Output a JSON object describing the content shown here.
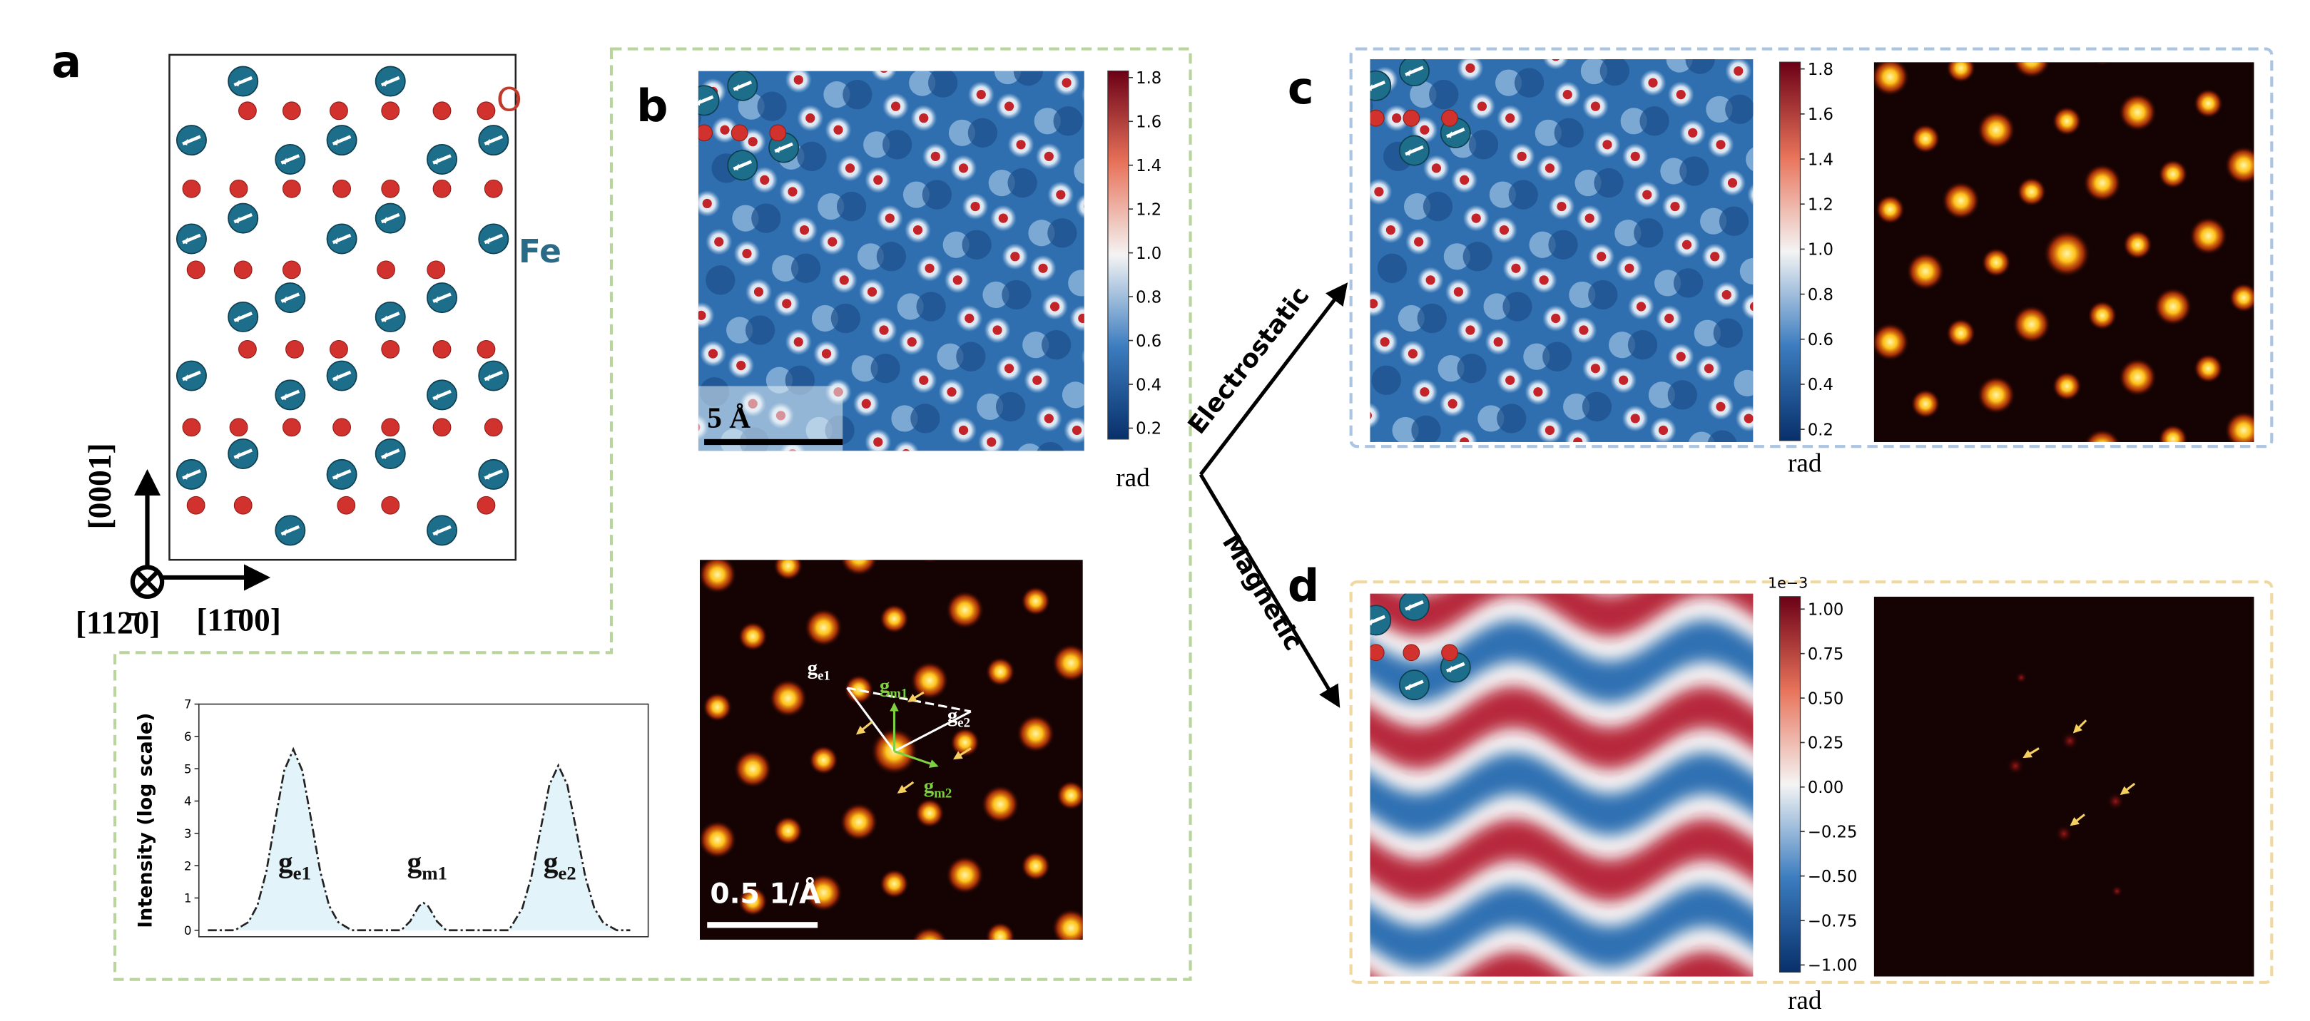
{
  "panel_a": {
    "label": "a",
    "oxygen_label": "O",
    "iron_label": "Fe",
    "axis_vertical": "[0001]",
    "axis_view": "[112̄0]",
    "axis_horizontal": "[11̄00]",
    "intensity_plot": {
      "ylabel": "Intensity (log scale)",
      "xlim": [
        0,
        100
      ],
      "ylim": [
        -0.2,
        7
      ],
      "yticks": [
        0,
        1,
        2,
        3,
        4,
        5,
        6,
        7
      ],
      "x": [
        2,
        8,
        11,
        13,
        15,
        17,
        19,
        21,
        23,
        25,
        27,
        29,
        31,
        34,
        45,
        47,
        48,
        49,
        50,
        51,
        52,
        53,
        55,
        69,
        70,
        72,
        74,
        76,
        78,
        80,
        82,
        84,
        86,
        88,
        90,
        93,
        96
      ],
      "y": [
        0,
        0,
        0.25,
        0.76,
        1.82,
        3.4,
        4.94,
        5.6,
        4.94,
        3.4,
        1.82,
        0.76,
        0.25,
        0,
        0,
        0.28,
        0.52,
        0.75,
        0.85,
        0.75,
        0.52,
        0.28,
        0,
        0,
        0.23,
        0.69,
        1.66,
        3.09,
        4.5,
        5.1,
        4.5,
        3.09,
        1.66,
        0.69,
        0.23,
        0,
        0
      ],
      "peaks": [
        {
          "symbol": "g",
          "subscript": "e1"
        },
        {
          "symbol": "g",
          "subscript": "m1"
        },
        {
          "symbol": "g",
          "subscript": "e2"
        }
      ]
    }
  },
  "panel_b": {
    "label": "b",
    "scale_bar": "5 Å",
    "colorbar": {
      "unit": "rad",
      "lim": [
        0.15,
        1.83
      ],
      "ticks": [
        0.2,
        0.4,
        0.6,
        0.8,
        {
          "value": 1,
          "label": "1.0"
        },
        1.2,
        1.4,
        1.6,
        1.8
      ]
    },
    "fft_scale_bar": "0.5 1/Å",
    "fft_labels": [
      {
        "symbol": "g",
        "subscript": "e1"
      },
      {
        "symbol": "g",
        "subscript": "m1"
      },
      {
        "symbol": "g",
        "subscript": "e2"
      },
      {
        "symbol": "g",
        "subscript": "m2"
      }
    ]
  },
  "branches": {
    "electrostatic": "Electrostatic",
    "magnetic": "Magnetic"
  },
  "panel_c": {
    "label": "c",
    "colorbar": {
      "unit": "rad",
      "lim": [
        0.15,
        1.83
      ],
      "ticks": [
        0.2,
        0.4,
        0.6,
        0.8,
        {
          "value": 1,
          "label": "1.0"
        },
        1.2,
        1.4,
        1.6,
        1.8
      ]
    }
  },
  "panel_d": {
    "label": "d",
    "colorbar": {
      "unit": "rad",
      "multiplier": "1e−3",
      "lim": [
        -1.04,
        1.07
      ],
      "ticks": [
        {
          "value": -1,
          "label": "−1.00"
        },
        {
          "value": -0.75,
          "label": "−0.75"
        },
        {
          "value": -0.5,
          "label": "−0.50"
        },
        {
          "value": -0.25,
          "label": "−0.25"
        },
        {
          "value": 0,
          "label": "0.00"
        },
        {
          "value": 0.25,
          "label": "0.25"
        },
        {
          "value": 0.5,
          "label": "0.50"
        },
        {
          "value": 0.75,
          "label": "0.75"
        },
        {
          "value": 1,
          "label": "1.00"
        }
      ]
    }
  }
}
